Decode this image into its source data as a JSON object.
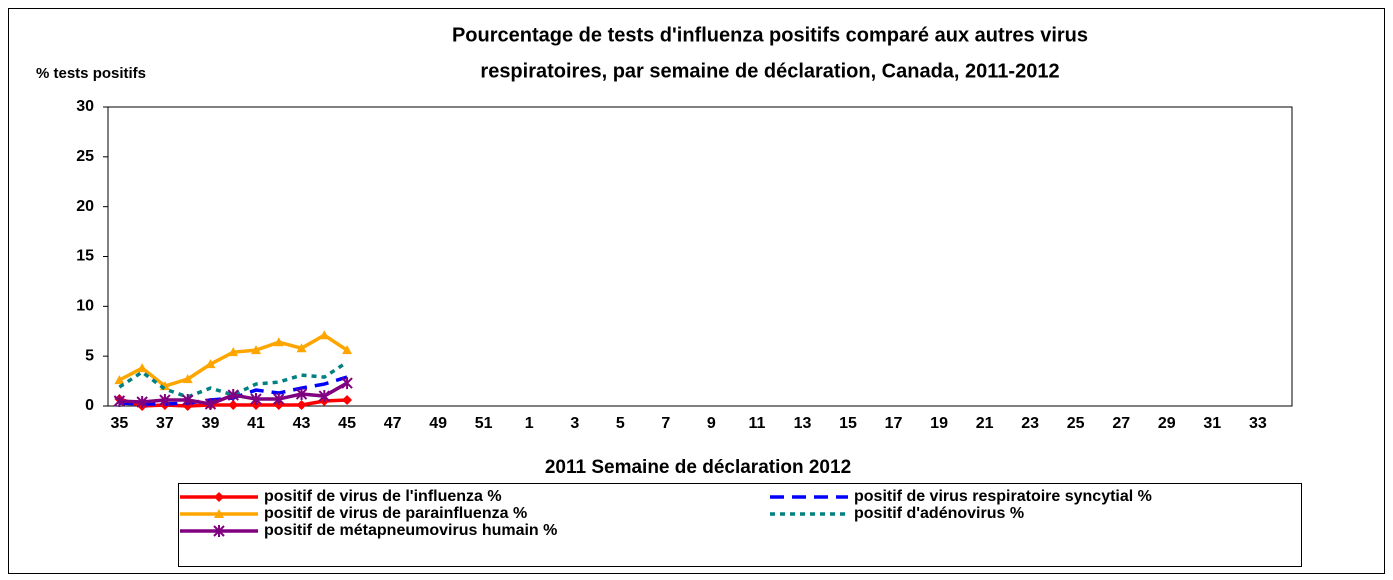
{
  "chart_data": {
    "type": "line",
    "title": [
      "Pourcentage de tests d'influenza positifs comparé aux autres virus",
      "respiratoires, par semaine de déclaration, Canada, 2011-2012"
    ],
    "y_label": "% tests positifs",
    "x_label": "2011  Semaine de déclaration   2012",
    "categories": [
      "35",
      null,
      "37",
      null,
      "39",
      null,
      "41",
      null,
      "43",
      null,
      "45",
      null,
      "47",
      null,
      "49",
      null,
      "51",
      null,
      "1",
      null,
      "3",
      null,
      "5",
      null,
      "7",
      null,
      "9",
      null,
      "11",
      null,
      "13",
      null,
      "15",
      null,
      "17",
      null,
      "19",
      null,
      "21",
      null,
      "23",
      null,
      "25",
      null,
      "27",
      null,
      "29",
      null,
      "31",
      null,
      "33",
      null
    ],
    "ylim": [
      0,
      30
    ],
    "yticks": [
      0,
      5,
      10,
      15,
      20,
      25,
      30
    ],
    "series": [
      {
        "name": "positif de virus de l'influenza %",
        "color": "#ff0000",
        "style": "solid",
        "marker": "diamond",
        "values": [
          0.7,
          0,
          0.1,
          0,
          0.1,
          0.1,
          0.1,
          0.1,
          0.1,
          0.5,
          0.6,
          null,
          null,
          null,
          null,
          null,
          null,
          null,
          null,
          null,
          null,
          null,
          null,
          null,
          null,
          null,
          null,
          null,
          null,
          null,
          null,
          null,
          null,
          null,
          null,
          null,
          null,
          null,
          null,
          null,
          null,
          null,
          null,
          null,
          null,
          null,
          null,
          null,
          null,
          null,
          null,
          null
        ]
      },
      {
        "name": "positif de virus respiratoire syncytial %",
        "color": "#0000ff",
        "style": "dashed",
        "marker": "none",
        "values": [
          0.3,
          0.2,
          0.2,
          0.3,
          0.6,
          0.8,
          1.6,
          1.3,
          1.8,
          2.2,
          2.9,
          null,
          null,
          null,
          null,
          null,
          null,
          null,
          null,
          null,
          null,
          null,
          null,
          null,
          null,
          null,
          null,
          null,
          null,
          null,
          null,
          null,
          null,
          null,
          null,
          null,
          null,
          null,
          null,
          null,
          null,
          null,
          null,
          null,
          null,
          null,
          null,
          null,
          null,
          null,
          null,
          null
        ]
      },
      {
        "name": "positif de virus de parainfluenza %",
        "color": "#ffa500",
        "style": "solid",
        "marker": "triangle",
        "values": [
          2.6,
          3.8,
          2.0,
          2.7,
          4.2,
          5.4,
          5.6,
          6.4,
          5.8,
          7.1,
          5.6,
          null,
          null,
          null,
          null,
          null,
          null,
          null,
          null,
          null,
          null,
          null,
          null,
          null,
          null,
          null,
          null,
          null,
          null,
          null,
          null,
          null,
          null,
          null,
          null,
          null,
          null,
          null,
          null,
          null,
          null,
          null,
          null,
          null,
          null,
          null,
          null,
          null,
          null,
          null,
          null,
          null
        ]
      },
      {
        "name": "positif d'adénovirus %",
        "color": "#008080",
        "style": "dotted",
        "marker": "none",
        "values": [
          1.9,
          3.4,
          1.7,
          0.9,
          1.8,
          1.1,
          2.2,
          2.4,
          3.1,
          2.9,
          4.4,
          null,
          null,
          null,
          null,
          null,
          null,
          null,
          null,
          null,
          null,
          null,
          null,
          null,
          null,
          null,
          null,
          null,
          null,
          null,
          null,
          null,
          null,
          null,
          null,
          null,
          null,
          null,
          null,
          null,
          null,
          null,
          null,
          null,
          null,
          null,
          null,
          null,
          null,
          null,
          null,
          null
        ]
      },
      {
        "name": "positif de métapneumovirus humain %",
        "color": "#800080",
        "style": "solid",
        "marker": "star",
        "values": [
          0.5,
          0.4,
          0.6,
          0.6,
          0.2,
          1.1,
          0.7,
          0.7,
          1.2,
          1.0,
          2.3,
          null,
          null,
          null,
          null,
          null,
          null,
          null,
          null,
          null,
          null,
          null,
          null,
          null,
          null,
          null,
          null,
          null,
          null,
          null,
          null,
          null,
          null,
          null,
          null,
          null,
          null,
          null,
          null,
          null,
          null,
          null,
          null,
          null,
          null,
          null,
          null,
          null,
          null,
          null,
          null,
          null
        ]
      }
    ]
  }
}
